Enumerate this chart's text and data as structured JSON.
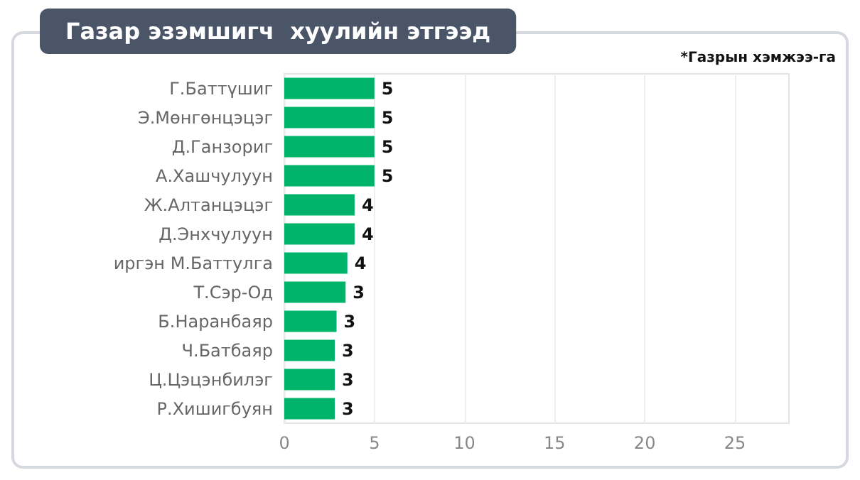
{
  "chart_data": {
    "type": "bar",
    "orientation": "horizontal",
    "title": "Газар эзэмшигч  хуулийн этгээд",
    "annotations": [
      "*Газрын хэмжээ-га"
    ],
    "categories": [
      "Г.Баттүшиг",
      "Э.Мөнгөнцэцэг",
      "Д.Ганзориг",
      "А.Хашчулуун",
      "Ж.Алтанцэцэг",
      "Д.Энхчулуун",
      "иргэн М.Баттулга",
      "Т.Сэр-Од",
      "Б.Наранбаяр",
      "Ч.Батбаяр",
      "Ц.Цэцэнбилэг",
      "Р.Хишигбуян"
    ],
    "values": [
      5,
      5,
      5,
      5,
      3.9,
      3.9,
      3.5,
      3.4,
      2.9,
      2.8,
      2.8,
      2.8
    ],
    "value_labels": [
      "5",
      "5",
      "5",
      "5",
      "4",
      "4",
      "4",
      "3",
      "3",
      "3",
      "3",
      "3"
    ],
    "color": "#00b36b",
    "xlim": [
      0,
      28
    ],
    "xticks": [
      0,
      5,
      10,
      15,
      20,
      25
    ],
    "grid": "x"
  }
}
